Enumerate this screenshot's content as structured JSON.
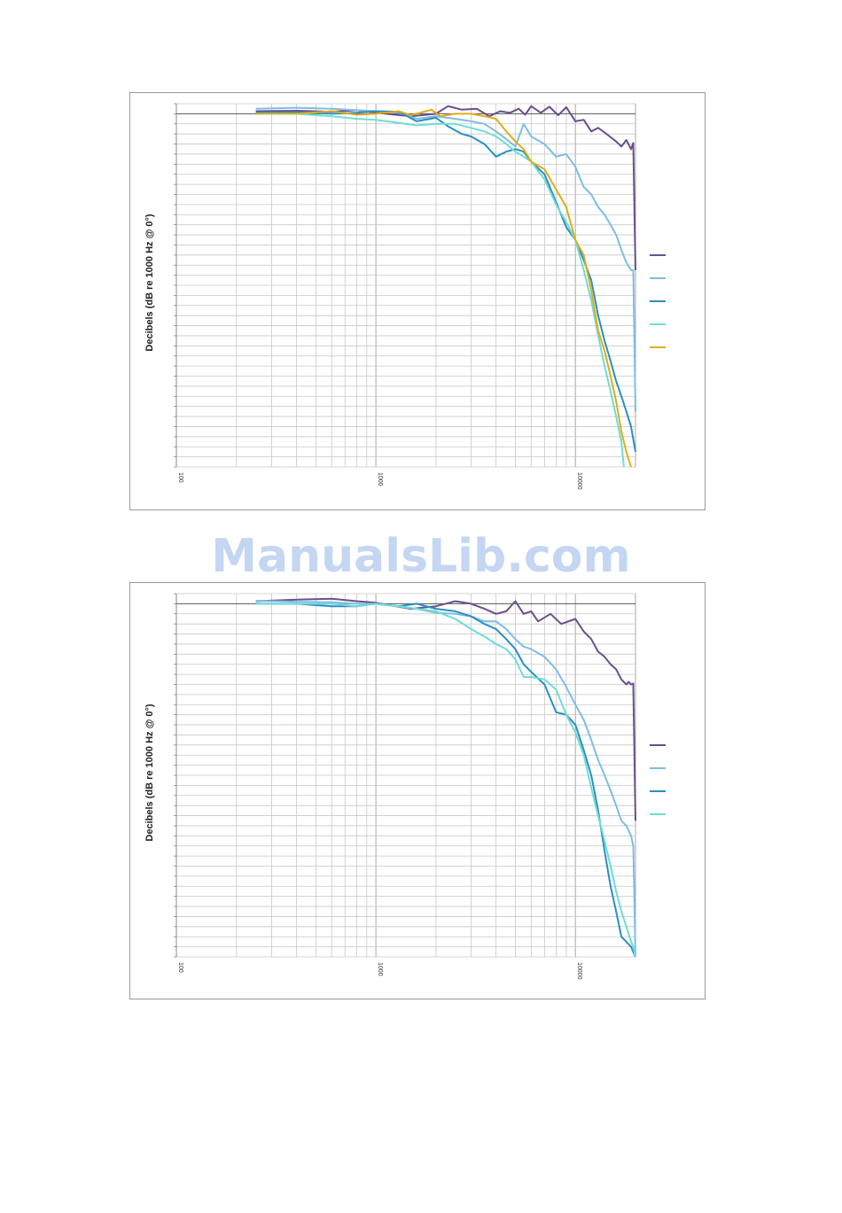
{
  "watermark": "ManualsLib.com",
  "colors": {
    "frame": "#9a9a9a",
    "grid": "#c8c8c8",
    "refline": "#555555",
    "series": [
      "#6a4f8c",
      "#7fbde6",
      "#2a8fc2",
      "#6fdcd6",
      "#e0ad17"
    ]
  },
  "chart_data": [
    {
      "type": "line",
      "x_scale": "log",
      "xlim": [
        100,
        20000
      ],
      "ylim": [
        -70,
        2
      ],
      "grid": true,
      "legend": "right",
      "ylabel": "Decibels (dB re 1000 Hz @ 0°)",
      "x_ticks": [
        "100",
        "1000",
        "10000"
      ],
      "x_tick_values": [
        100,
        1000,
        10000
      ],
      "series": [
        {
          "color": "#6a4f8c",
          "x": [
            250,
            400,
            600,
            800,
            1000,
            1500,
            2000,
            2300,
            2700,
            3200,
            3700,
            4200,
            4700,
            5200,
            5600,
            6000,
            6700,
            7400,
            8200,
            9000,
            10000,
            11000,
            12000,
            13000,
            14000,
            16000,
            17000,
            18000,
            19000,
            19500,
            20000
          ],
          "y": [
            0.5,
            0.6,
            0.4,
            0.7,
            0.2,
            -0.5,
            0.0,
            1.5,
            0.8,
            1.0,
            -0.5,
            0.5,
            0.2,
            1.0,
            -0.2,
            1.5,
            0.2,
            1.4,
            -0.3,
            1.3,
            -1.5,
            -1.2,
            -3.5,
            -2.8,
            -3.7,
            -5.5,
            -6.5,
            -5.2,
            -7.0,
            -5.8,
            -31
          ]
        },
        {
          "color": "#7fbde6",
          "x": [
            250,
            400,
            600,
            800,
            1000,
            1300,
            1600,
            2000,
            2500,
            3000,
            3500,
            4000,
            4500,
            5000,
            5500,
            6000,
            7000,
            8000,
            9000,
            10000,
            11000,
            12000,
            13000,
            14000,
            15000,
            16000,
            17000,
            18000,
            19000,
            19500,
            20000
          ],
          "y": [
            1.0,
            1.2,
            1.0,
            0.7,
            0.5,
            0.2,
            -1.0,
            -0.5,
            -1.0,
            -1.5,
            -2.0,
            -3.5,
            -5.0,
            -6.5,
            -2.0,
            -4.5,
            -6.0,
            -8.5,
            -8.0,
            -10.5,
            -14.5,
            -16.0,
            -18.5,
            -20.0,
            -22.0,
            -24.0,
            -27.0,
            -29.5,
            -31.0,
            -31.0,
            -59
          ]
        },
        {
          "color": "#2a8fc2",
          "x": [
            250,
            400,
            600,
            800,
            1000,
            1300,
            1600,
            2000,
            2300,
            2700,
            3000,
            3500,
            4000,
            4500,
            5000,
            5500,
            6000,
            7000,
            8000,
            9000,
            10000,
            11000,
            12000,
            13000,
            14000,
            15000,
            16000,
            17000,
            18000,
            19000,
            20000
          ],
          "y": [
            0.2,
            0.3,
            0.0,
            0.2,
            0.5,
            0.4,
            -1.5,
            -0.8,
            -2.5,
            -4.0,
            -4.5,
            -6.0,
            -8.5,
            -7.5,
            -7.0,
            -7.5,
            -9.5,
            -12.0,
            -17.5,
            -22.5,
            -25.0,
            -29.0,
            -33.0,
            -40.0,
            -45.0,
            -49.0,
            -53.0,
            -56.0,
            -59.0,
            -62.0,
            -67
          ]
        },
        {
          "color": "#6fdcd6",
          "x": [
            250,
            400,
            600,
            800,
            1000,
            1300,
            1600,
            2000,
            2500,
            3000,
            3500,
            4000,
            4500,
            5000,
            5500,
            6000,
            7000,
            8000,
            9000,
            10000,
            11000,
            12000,
            13000,
            14000,
            15000,
            16000,
            17000,
            17500
          ],
          "y": [
            0.0,
            0.0,
            -0.5,
            -1.0,
            -1.2,
            -1.8,
            -2.3,
            -2.0,
            -2.0,
            -2.8,
            -3.5,
            -4.5,
            -6.0,
            -7.5,
            -8.5,
            -9.5,
            -13.0,
            -18.0,
            -21.5,
            -25.0,
            -31.0,
            -37.0,
            -44.0,
            -50.0,
            -55.0,
            -60.0,
            -65.0,
            -70.0
          ]
        },
        {
          "color": "#e0ad17",
          "x": [
            250,
            400,
            600,
            800,
            1000,
            1300,
            1500,
            1700,
            1900,
            2100,
            2500,
            3000,
            3500,
            4000,
            4500,
            5000,
            5500,
            6000,
            7000,
            8000,
            9000,
            10000,
            11000,
            12000,
            13000,
            14000,
            15000,
            16000,
            17000,
            18000,
            19000
          ],
          "y": [
            0.0,
            0.0,
            0.5,
            -0.2,
            0.0,
            0.5,
            -0.3,
            0.3,
            0.8,
            -0.5,
            0.0,
            0.0,
            -0.5,
            -1.0,
            -3.5,
            -5.5,
            -7.0,
            -9.5,
            -11.0,
            -15.0,
            -18.5,
            -25.0,
            -28.0,
            -35.0,
            -43.0,
            -47.0,
            -52.0,
            -57.0,
            -63.0,
            -67.0,
            -70.0
          ]
        }
      ]
    },
    {
      "type": "line",
      "x_scale": "log",
      "xlim": [
        100,
        20000
      ],
      "ylim": [
        -70,
        2
      ],
      "grid": true,
      "legend": "right",
      "ylabel": "Decibels (dB re 1000 Hz @ 0°)",
      "x_ticks": [
        "100",
        "1000",
        "10000"
      ],
      "x_tick_values": [
        100,
        1000,
        10000
      ],
      "series": [
        {
          "color": "#6a4f8c",
          "x": [
            250,
            400,
            600,
            800,
            1000,
            1500,
            2000,
            2500,
            3000,
            3500,
            4000,
            4500,
            5000,
            5500,
            6000,
            6500,
            7500,
            8500,
            10000,
            11000,
            12000,
            13000,
            14000,
            15000,
            16000,
            17000,
            18000,
            18500,
            19000,
            19500,
            20000
          ],
          "y": [
            0.5,
            0.8,
            1.0,
            0.5,
            0.2,
            -1.0,
            -0.5,
            0.5,
            0.0,
            -1.0,
            -2.0,
            -1.5,
            0.5,
            -2.0,
            -1.5,
            -3.5,
            -2.0,
            -4.0,
            -3.0,
            -5.5,
            -7.0,
            -9.5,
            -10.5,
            -12.0,
            -13.0,
            -15.0,
            -16.0,
            -15.5,
            -16.0,
            -15.8,
            -43
          ]
        },
        {
          "color": "#7fbde6",
          "x": [
            250,
            400,
            600,
            800,
            1000,
            1300,
            1600,
            2000,
            2500,
            3000,
            3500,
            4000,
            4500,
            5000,
            5500,
            6000,
            7000,
            8000,
            9000,
            10000,
            11000,
            12000,
            13000,
            14000,
            15000,
            16000,
            17000,
            18000,
            19000,
            19500,
            20000
          ],
          "y": [
            0.6,
            0.4,
            0.3,
            0.0,
            0.0,
            -0.5,
            -1.0,
            -1.8,
            -2.0,
            -2.5,
            -3.5,
            -3.5,
            -5.0,
            -7.0,
            -8.5,
            -9.0,
            -10.5,
            -13.0,
            -16.5,
            -20.0,
            -23.0,
            -27.0,
            -31.0,
            -34.0,
            -37.0,
            -40.0,
            -43.0,
            -44.0,
            -46.0,
            -48.0,
            -70
          ]
        },
        {
          "color": "#2a8fc2",
          "x": [
            250,
            400,
            600,
            800,
            1000,
            1300,
            1600,
            2000,
            2500,
            3000,
            3500,
            4000,
            4500,
            5000,
            5500,
            6000,
            7000,
            8000,
            9000,
            10000,
            11000,
            12000,
            13000,
            14000,
            15000,
            16000,
            17000,
            18000,
            19000,
            19500,
            20000
          ],
          "y": [
            0.0,
            0.0,
            -0.5,
            -0.5,
            0.0,
            -0.5,
            0.0,
            -1.0,
            -1.5,
            -2.5,
            -4.0,
            -5.0,
            -7.0,
            -9.0,
            -12.0,
            -13.5,
            -16.0,
            -21.5,
            -22.0,
            -24.0,
            -29.0,
            -34.0,
            -41.0,
            -49.0,
            -56.0,
            -61.0,
            -66.0,
            -67.0,
            -68.0,
            -69.0,
            -70
          ]
        },
        {
          "color": "#6fdcd6",
          "x": [
            250,
            400,
            600,
            800,
            1000,
            1300,
            1600,
            2000,
            2500,
            3000,
            3500,
            4000,
            4500,
            5000,
            5500,
            6000,
            7000,
            8000,
            9000,
            10000,
            11000,
            12000,
            13000,
            14000,
            15000,
            16000,
            17000,
            18000,
            19000,
            19500,
            20000
          ],
          "y": [
            0.0,
            0.0,
            0.0,
            -0.5,
            0.0,
            -0.5,
            -1.0,
            -1.5,
            -3.0,
            -5.0,
            -6.5,
            -8.0,
            -9.0,
            -11.0,
            -14.5,
            -14.5,
            -15.0,
            -17.0,
            -22.0,
            -25.5,
            -30.0,
            -36.5,
            -42.0,
            -47.0,
            -52.0,
            -57.0,
            -61.0,
            -64.0,
            -67.0,
            -68.0,
            -70
          ]
        }
      ]
    }
  ]
}
